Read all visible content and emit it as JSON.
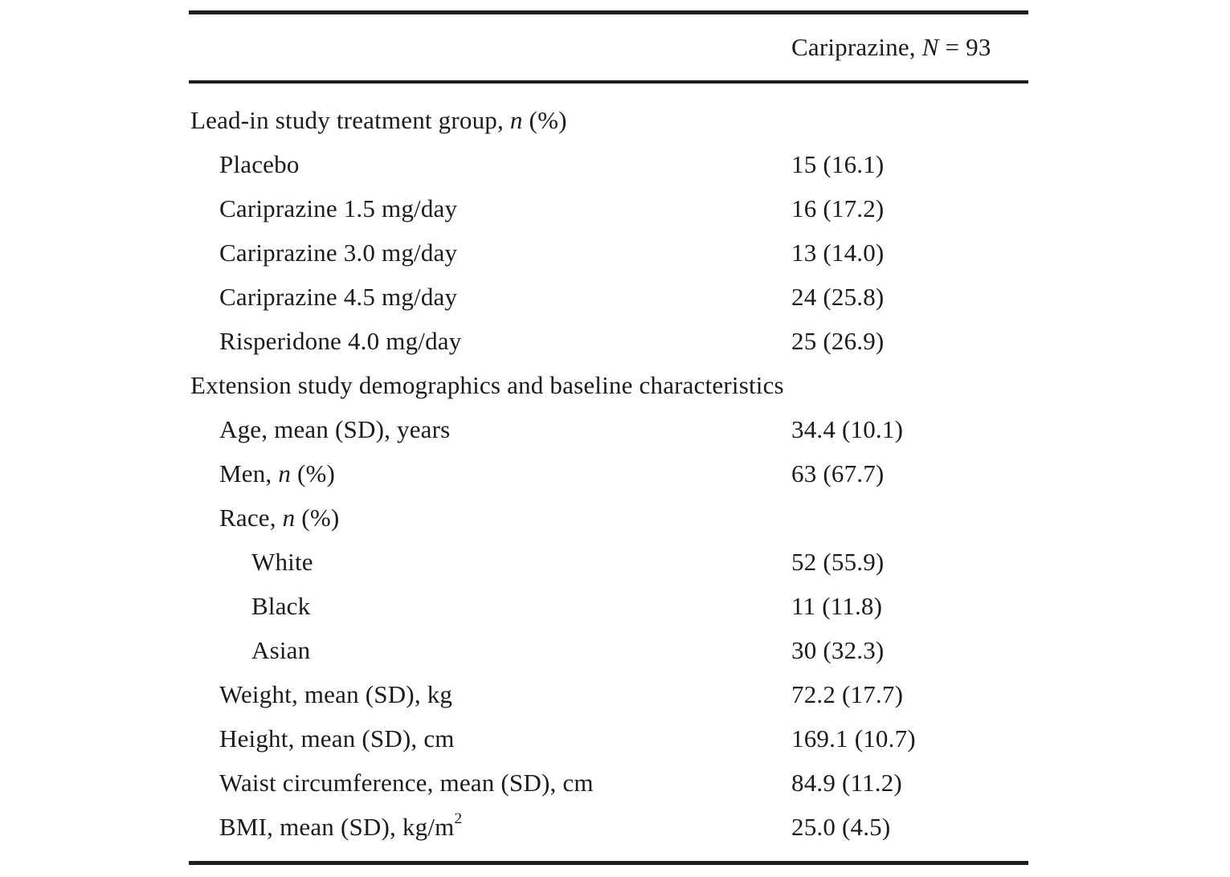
{
  "table": {
    "header": {
      "pre": "Cariprazine, ",
      "it": "N",
      "post": " = 93"
    },
    "rows": [
      {
        "indent": 0,
        "pre": "Lead-in study treatment group, ",
        "it": "n",
        "post": " (%)",
        "value": ""
      },
      {
        "indent": 1,
        "pre": "Placebo",
        "it": "",
        "post": "",
        "value": "15 (16.1)"
      },
      {
        "indent": 1,
        "pre": "Cariprazine 1.5 mg/day",
        "it": "",
        "post": "",
        "value": "16 (17.2)"
      },
      {
        "indent": 1,
        "pre": "Cariprazine 3.0 mg/day",
        "it": "",
        "post": "",
        "value": "13 (14.0)"
      },
      {
        "indent": 1,
        "pre": "Cariprazine 4.5 mg/day",
        "it": "",
        "post": "",
        "value": "24 (25.8)"
      },
      {
        "indent": 1,
        "pre": "Risperidone 4.0 mg/day",
        "it": "",
        "post": "",
        "value": "25 (26.9)"
      },
      {
        "indent": 0,
        "pre": "Extension study demographics and baseline characteristics",
        "it": "",
        "post": "",
        "value": ""
      },
      {
        "indent": 1,
        "pre": "Age, mean (SD), years",
        "it": "",
        "post": "",
        "value": "34.4 (10.1)"
      },
      {
        "indent": 1,
        "pre": "Men, ",
        "it": "n",
        "post": " (%)",
        "value": "63 (67.7)"
      },
      {
        "indent": 1,
        "pre": "Race, ",
        "it": "n",
        "post": " (%)",
        "value": ""
      },
      {
        "indent": 2,
        "pre": "White",
        "it": "",
        "post": "",
        "value": "52 (55.9)"
      },
      {
        "indent": 2,
        "pre": "Black",
        "it": "",
        "post": "",
        "value": "11 (11.8)"
      },
      {
        "indent": 2,
        "pre": "Asian",
        "it": "",
        "post": "",
        "value": "30 (32.3)"
      },
      {
        "indent": 1,
        "pre": "Weight, mean (SD), kg",
        "it": "",
        "post": "",
        "value": "72.2 (17.7)"
      },
      {
        "indent": 1,
        "pre": "Height, mean (SD), cm",
        "it": "",
        "post": "",
        "value": "169.1 (10.7)"
      },
      {
        "indent": 1,
        "pre": "Waist circumference, mean (SD), cm",
        "it": "",
        "post": "",
        "value": "84.9 (11.2)"
      },
      {
        "indent": 1,
        "pre": "BMI, mean (SD), kg/m",
        "it": "",
        "post": "",
        "sup": "2",
        "value": "25.0 (4.5)"
      }
    ]
  }
}
